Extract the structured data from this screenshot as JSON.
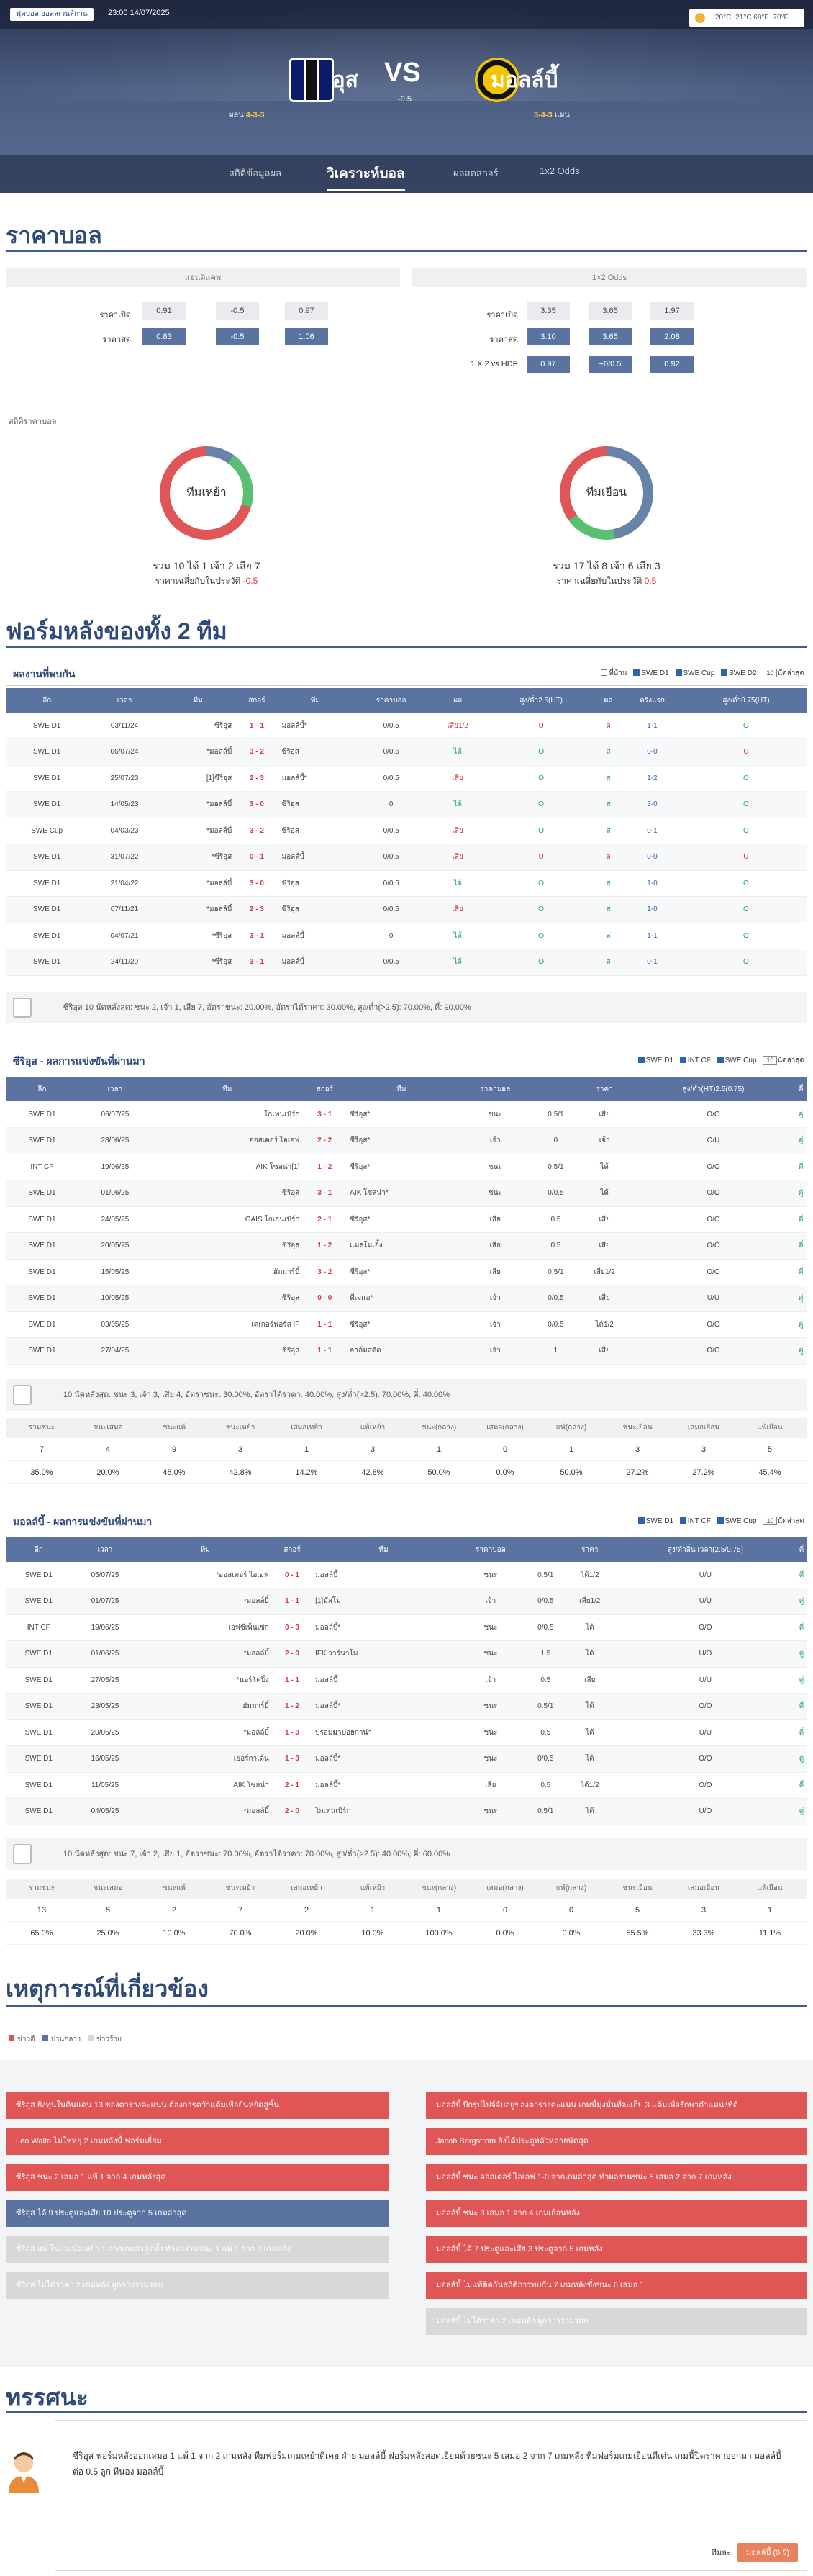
{
  "header": {
    "league": "ฟุตบอล ออลสเวนส์กาน",
    "kickoff": "23:00 14/07/2025",
    "weather": "20°C~21°C 68°F~70°F",
    "home": "ซีริอุส",
    "away": "มอลล์บี้",
    "vs": "VS",
    "handicap": "-0.5",
    "home_form_label": "ผลน",
    "home_form": "4-3-3",
    "away_form_label": "แผน",
    "away_form": "3-4-3",
    "tabs": [
      "สถิติข้อมูลผล",
      "วิเคราะห์บอล",
      "ผลสดสกอร์",
      "1x2 Odds"
    ]
  },
  "odds": {
    "title": "ราคาบอล",
    "left_head": "แฮนดิแคพ",
    "right_head": "1×2 Odds",
    "open_label": "ราคาเปิด",
    "now_label": "ราคาสด",
    "hdp_label": "1 X 2 vs HDP",
    "left_open": [
      "0.91",
      "-0.5",
      "0.97"
    ],
    "left_now": [
      "0.83",
      "-0.5",
      "1.06"
    ],
    "right_open": [
      "3.35",
      "3.65",
      "1.97"
    ],
    "right_now": [
      "3.10",
      "3.65",
      "2.08"
    ],
    "right_hdp": [
      "0.97",
      "+0/0.5",
      "0.92"
    ]
  },
  "stats": {
    "label": "สถิติราคาบอล",
    "home_ring": "ทีมเหย้า",
    "away_ring": "ทีมเยือน",
    "home_line": "รวม 10 ได้ 1 เจ้า 2 เสีย 7",
    "home_line2": "ราคาเฉลี่ยกับในประวัติ",
    "home_avg": "-0.5",
    "away_line": "รวม 17 ได้ 8 เจ้า 6 เสีย 3",
    "away_line2": "ราคาเฉลี่ยกับในประวัติ",
    "away_avg": "0.5"
  },
  "form": {
    "title": "ฟอร์มหลังของทั้ง 2 ทีม",
    "h2h_title": "ผลงานที่พบกัน",
    "filters": [
      "ที่บ้าน",
      "SWE D1",
      "SWE Cup",
      "SWE D2"
    ],
    "select": "10",
    "sel_label": "นัดล่าสุด",
    "cols": [
      "ลีก",
      "เวลา",
      "ทีม",
      "สกอร์",
      "ทีม",
      "ราคาบอล",
      "ผล",
      "สูง/ต่ำ2.5(HT)",
      "ผล",
      "ครึ่งแรก",
      "สูง/ต่ำ0.75(HT)"
    ],
    "rows": [
      [
        "SWE D1",
        "03/11/24",
        "ซีริอุส",
        "1 - 1",
        "มอลล์บี้*",
        "0/0.5",
        "เสีย1/2",
        "U",
        "ด",
        "1-1",
        "O"
      ],
      [
        "SWE D1",
        "06/07/24",
        "*มอลล์บี้",
        "3 - 2",
        "ซีริอุส",
        "0/0.5",
        "ได้",
        "O",
        "ส",
        "0-0",
        "U"
      ],
      [
        "SWE D1",
        "25/07/23",
        "[1]ซีริอุส",
        "2 - 3",
        "มอลล์บี้*",
        "0/0.5",
        "เสีย",
        "O",
        "ส",
        "1-2",
        "O"
      ],
      [
        "SWE D1",
        "14/05/23",
        "*มอลล์บี้",
        "3 - 0",
        "ซีริอุส",
        "0",
        "ได้",
        "O",
        "ส",
        "3-0",
        "O"
      ],
      [
        "SWE Cup",
        "04/03/23",
        "*มอลล์บี้",
        "3 - 2",
        "ซีริอุส",
        "0/0.5",
        "เสีย",
        "O",
        "ส",
        "0-1",
        "O"
      ],
      [
        "SWE D1",
        "31/07/22",
        "*ซีริอุส",
        "0 - 1",
        "มอลล์บี้",
        "0/0.5",
        "เสีย",
        "U",
        "ด",
        "0-0",
        "U"
      ],
      [
        "SWE D1",
        "21/04/22",
        "*มอลล์บี้",
        "3 - 0",
        "ซีริอุส",
        "0/0.5",
        "ได้",
        "O",
        "ส",
        "1-0",
        "O"
      ],
      [
        "SWE D1",
        "07/11/21",
        "*มอลล์บี้",
        "2 - 3",
        "ซีริอุส",
        "0/0.5",
        "เสีย",
        "O",
        "ส",
        "1-0",
        "O"
      ],
      [
        "SWE D1",
        "04/07/21",
        "*ซีริอุส",
        "3 - 1",
        "มอลล์บี้",
        "0",
        "ได้",
        "O",
        "ส",
        "1-1",
        "O"
      ],
      [
        "SWE D1",
        "24/11/20",
        "*ซีริอุส",
        "3 - 1",
        "มอลล์บี้",
        "0/0.5",
        "ได้",
        "O",
        "ส",
        "0-1",
        "O"
      ]
    ],
    "summary": "ซีริอุส 10 นัดหลังสุด: ชนะ 2, เจ้า 1, เสีย 7, อัตราชนะ: 20.00%, อัตราได้ราคา: 30.00%, สูง/ต่ำ(>2.5): 70.00%, คี่: 90.00%"
  },
  "home_recent": {
    "title": "ซีริอุส - ผลการแข่งขันที่ผ่านมา",
    "filters": [
      "SWE D1",
      "INT CF",
      "SWE Cup"
    ],
    "select": "10",
    "sel_label": "นัดล่าสุด",
    "cols": [
      "ลีก",
      "เวลา",
      "ทีม",
      "สกอร์",
      "ทีม",
      "ราคาบอล",
      "ราคา",
      "สูง/ต่ำ(HT)2.5(0.75)",
      "คี่"
    ],
    "rows": [
      [
        "SWE D1",
        "06/07/25",
        "โกเทนเบิร์ก",
        "3 - 1",
        "ซีริอุส*",
        "ชนะ",
        "0.5/1",
        "เสีย",
        "O/O",
        "คู่"
      ],
      [
        "SWE D1",
        "28/06/25",
        "ออสเตอร์ ไอเอฟ",
        "2 - 2",
        "ซีริอุส*",
        "เจ้า",
        "0",
        "เจ้า",
        "O/U",
        "คู่"
      ],
      [
        "INT CF",
        "19/06/25",
        "AIK โซลน่า[1]",
        "1 - 2",
        "ซีริอุส*",
        "ชนะ",
        "0.5/1",
        "ได้",
        "O/O",
        "คี่"
      ],
      [
        "SWE D1",
        "01/06/25",
        "ซีริอุส",
        "3 - 1",
        "AIK โซลน่า*",
        "ชนะ",
        "0/0.5",
        "ได้",
        "O/O",
        "คู่"
      ],
      [
        "SWE D1",
        "24/05/25",
        "GAIS โกเธนเบิร์ก",
        "2 - 1",
        "ซีริอุส*",
        "เสีย",
        "0.5",
        "เสีย",
        "O/O",
        "คี่"
      ],
      [
        "SWE D1",
        "20/05/25",
        "ซีริอุส",
        "1 - 2",
        "แมลโมเอิ้ง",
        "เสีย",
        "0.5",
        "เสีย",
        "O/O",
        "คี่"
      ],
      [
        "SWE D1",
        "15/05/25",
        "ฮัมมาร์บี้",
        "3 - 2",
        "ซีริอุส*",
        "เสีย",
        "0.5/1",
        "เสีย1/2",
        "O/O",
        "คี่"
      ],
      [
        "SWE D1",
        "10/05/25",
        "ซีริอุส",
        "0 - 0",
        "ดีเจแอ*",
        "เจ้า",
        "0/0.5",
        "เสีย",
        "U/U",
        "คู่"
      ],
      [
        "SWE D1",
        "03/05/25",
        "เดเกอร์ฟอร์ส IF",
        "1 - 1",
        "ซีริอุส*",
        "เจ้า",
        "0/0.5",
        "ได้1/2",
        "O/O",
        "คู่"
      ],
      [
        "SWE D1",
        "27/04/25",
        "ซีริอุส",
        "1 - 1",
        "ฮาล์มสตัด",
        "เจ้า",
        "1",
        "เสีย",
        "O/O",
        "คู่"
      ]
    ],
    "summary": "10 นัดหลังสุด: ชนะ 3, เจ้า 3, เสีย 4, อัตราชนะ: 30.00%, อัตราได้ราคา: 40.00%, สูง/ต่ำ(>2.5): 70.00%, คี่: 40.00%",
    "stat_head": [
      "รวมชนะ",
      "ชนะเสมอ",
      "ชนะแพ้",
      "ชนะเหย้า",
      "เสมอเหย้า",
      "แพ้เหย้า",
      "ชนะ(กลาง)",
      "เสมอ(กลาง)",
      "แพ้(กลาง)",
      "ชนะเยือน",
      "เสมอเยือน",
      "แพ้เยือน"
    ],
    "stat_count": [
      "7",
      "4",
      "9",
      "3",
      "1",
      "3",
      "1",
      "0",
      "1",
      "3",
      "3",
      "5"
    ],
    "stat_pct": [
      "35.0%",
      "20.0%",
      "45.0%",
      "42.8%",
      "14.2%",
      "42.8%",
      "50.0%",
      "0.0%",
      "50.0%",
      "27.2%",
      "27.2%",
      "45.4%"
    ]
  },
  "away_recent": {
    "title": "มอลล์บี้ - ผลการแข่งขันที่ผ่านมา",
    "filters": [
      "SWE D1",
      "INT CF",
      "SWE Cup"
    ],
    "select": "10",
    "sel_label": "นัดล่าสุด",
    "cols": [
      "ลีก",
      "เวลา",
      "ทีม",
      "สกอร์",
      "ทีม",
      "ราคาบอล",
      "ราคา",
      "สูง/ต่ำสิ้น เวลา(2.5/0.75)",
      "คี่"
    ],
    "rows": [
      [
        "SWE D1",
        "05/07/25",
        "*ออสเตอร์ ไอเอฟ",
        "0 - 1",
        "มอลล์บี้",
        "ชนะ",
        "0.5/1",
        "ได้1/2",
        "U/U",
        "คี่"
      ],
      [
        "SWE D1",
        "01/07/25",
        "*มอลล์บี้",
        "1 - 1",
        "[1]มัลโม",
        "เจ้า",
        "0/0.5",
        "เสีย1/2",
        "U/U",
        "คู่"
      ],
      [
        "INT CF",
        "19/06/25",
        "เอฟซีเพ็นเซ่ก",
        "0 - 3",
        "มอลล์บี้*",
        "ชนะ",
        "0/0.5",
        "ได้",
        "O/O",
        "คี่"
      ],
      [
        "SWE D1",
        "01/06/25",
        "*มอลล์บี้",
        "2 - 0",
        "IFK วาร์นาโม",
        "ชนะ",
        "1.5",
        "ได้",
        "U/O",
        "คู่"
      ],
      [
        "SWE D1",
        "27/05/25",
        "*นอร์โคปิ้ง",
        "1 - 1",
        "มอลล์บี้",
        "เจ้า",
        "0.5",
        "เสีย",
        "U/U",
        "คู่"
      ],
      [
        "SWE D1",
        "23/05/25",
        "ฮัมมาร์บี้",
        "1 - 2",
        "มอลล์บี้*",
        "ชนะ",
        "0.5/1",
        "ได้",
        "O/O",
        "คี่"
      ],
      [
        "SWE D1",
        "20/05/25",
        "*มอลล์บี้",
        "1 - 0",
        "บรอมมาปอยกาน่า",
        "ชนะ",
        "0.5",
        "ได้",
        "U/U",
        "คี่"
      ],
      [
        "SWE D1",
        "16/05/25",
        "เยอร์กาเด้น",
        "1 - 3",
        "มอลล์บี้*",
        "ชนะ",
        "0/0.5",
        "ได้",
        "O/O",
        "คู่"
      ],
      [
        "SWE D1",
        "11/05/25",
        "AIK โซลน่า",
        "2 - 1",
        "มอลล์บี้*",
        "เสีย",
        "0.5",
        "ได้1/2",
        "O/O",
        "คี่"
      ],
      [
        "SWE D1",
        "04/05/25",
        "*มอลล์บี้",
        "2 - 0",
        "โกเทนเบิร์ก",
        "ชนะ",
        "0.5/1",
        "ได้",
        "U/O",
        "คู่"
      ]
    ],
    "summary": "10 นัดหลังสุด: ชนะ 7, เจ้า 2, เสีย 1, อัตราชนะ: 70.00%, อัตราได้ราคา: 70.00%, สูง/ต่ำ(>2.5): 40.00%, คี่: 60.00%",
    "stat_count": [
      "13",
      "5",
      "2",
      "7",
      "2",
      "1",
      "1",
      "0",
      "0",
      "5",
      "3",
      "1"
    ],
    "stat_pct": [
      "65.0%",
      "25.0%",
      "10.0%",
      "70.0%",
      "20.0%",
      "10.0%",
      "100.0%",
      "0.0%",
      "0.0%",
      "55.5%",
      "33.3%",
      "11.1%"
    ]
  },
  "news": {
    "title": "เหตุการณ์ที่เกี่ยวข้อง",
    "legend": [
      "ข่าวดี",
      "ปานกลาง",
      "ข่าวร้าย"
    ],
    "left": [
      [
        "r",
        "ซีริอุส ยิงทุนในดินแดน 13 ของตารางคะแนน ต้องการคว้าแต้มเพื่อยืนหยัดสู่ชั้น"
      ],
      [
        "r",
        "Leo Walta ไม่ใช่หยุ 2 เกมหลังนี้ ฟอร์มเยี่ยม"
      ],
      [
        "r",
        "ซีริอุส ชนะ 2 เสมอ 1 แพ้ 1 จาก 4 เกมหลังสุด"
      ],
      [
        "b",
        "ซีริอุส ได้ 9 ประตูและเสีย 10 ประตูจาก 5 เกมล่าสุด"
      ],
      [
        "g",
        "ซีริอุส แพ้ ในเกมนัดเหย้า 1 จากเกมล่าสุดทั้ง ทำผลงานชนะ 1 แพ้ 1 จาก 2 เกมหลัง"
      ],
      [
        "g",
        "ซีริอุส ไม่ได้ราคา 2 เกมหลัง ลูกการรวมรอบ"
      ]
    ],
    "right": [
      [
        "r",
        "มอลล์บี้ ปีกรุปไปจ์จับอยู่ของตารางคะแนน เกมนี้มุ่งมั่นที่จะเก็บ 3 แต้มเพื่อรักษาตำแหน่งที่ดี"
      ],
      [
        "r",
        "Jacob Bergstrom ยิงได้ประตูหลัวหลายนัดสุด"
      ],
      [
        "r",
        "มอลล์บี้ ชนะ ออสเตอร์ ไอเอฟ 1-0 จากเกมล่าสุด ทำผลงานชนะ 5 เสมอ 2 จาก 7 เกมหลัง"
      ],
      [
        "r",
        "มอลล์บี้ ชนะ 3 เสมอ 1 จาก 4 เกมเยือนหลัง"
      ],
      [
        "r",
        "มอลล์บี้ ได้ 7 ประตูและเสีย 3 ประตูจาก 5 เกมหลัง"
      ],
      [
        "r",
        "มอลล์บี้ ไม่แพ้ติดกันสถิติการพบกัน 7 เกมหลังซึ่งชนะ 6 เสมอ 1"
      ],
      [
        "g",
        "มอลล์บี้ ไม่ได้ราคา 2 เกมหลัง ลูกการรวมรอบ"
      ]
    ]
  },
  "opinion": {
    "title": "ทรรศนะ",
    "text": "ซีริอุส ฟอร์มหลังออกเสมอ 1 แพ้ 1 จาก 2 เกมหลัง ทีมฟอร์มเกมเหย้าดีเคย ฝ่าย มอลล์บี้ ฟอร์มหลังสอดเยี่ยมด้วยชนะ 5 เสมอ 2 จาก 7 เกมหลัง ทีมฟอร์มเกมเยือนดีเด่น เกมนี้ปิดราคาออกมา มอลล์บี้ ต่อ 0.5 ลูก ทีนอง มอลล์บี้",
    "pick_label": "ทีมละ:",
    "pick": "มอลล์บี้ (0.5)"
  }
}
